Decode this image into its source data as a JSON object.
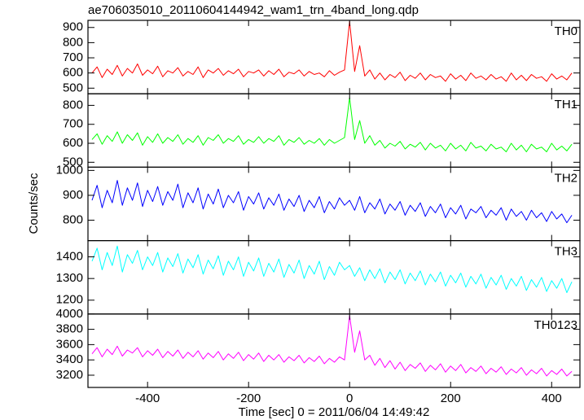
{
  "title": "ae706035010_20110604144942_wam1_trn_4band_long.qdp",
  "xlabel": "Time [sec] 0 = 2011/06/04 14:49:42",
  "ylabel": "Counts/sec",
  "chart_data": [
    {
      "type": "line",
      "label": "TH0",
      "color": "#ff0000",
      "x": [
        -510,
        -500,
        -490,
        -480,
        -470,
        -460,
        -450,
        -440,
        -430,
        -420,
        -410,
        -400,
        -390,
        -380,
        -370,
        -360,
        -350,
        -340,
        -330,
        -320,
        -310,
        -300,
        -290,
        -280,
        -270,
        -260,
        -250,
        -240,
        -230,
        -220,
        -210,
        -200,
        -190,
        -180,
        -170,
        -160,
        -150,
        -140,
        -130,
        -120,
        -110,
        -100,
        -90,
        -80,
        -70,
        -60,
        -50,
        -40,
        -30,
        -20,
        -10,
        0,
        10,
        20,
        30,
        40,
        50,
        60,
        70,
        80,
        90,
        100,
        110,
        120,
        130,
        140,
        150,
        160,
        170,
        180,
        190,
        200,
        210,
        220,
        230,
        240,
        250,
        260,
        270,
        280,
        290,
        300,
        310,
        320,
        330,
        340,
        350,
        360,
        370,
        380,
        390,
        400,
        410,
        420,
        430,
        440
      ],
      "values": [
        600,
        640,
        570,
        625,
        590,
        650,
        580,
        630,
        600,
        660,
        585,
        620,
        595,
        645,
        575,
        615,
        600,
        635,
        580,
        610,
        590,
        640,
        570,
        620,
        600,
        630,
        585,
        615,
        595,
        625,
        575,
        610,
        600,
        620,
        580,
        615,
        590,
        625,
        575,
        605,
        595,
        620,
        580,
        610,
        590,
        600,
        575,
        615,
        585,
        605,
        620,
        940,
        610,
        780,
        580,
        620,
        560,
        600,
        555,
        590,
        570,
        605,
        550,
        585,
        565,
        600,
        555,
        590,
        570,
        580,
        545,
        595,
        560,
        585,
        550,
        600,
        565,
        580,
        555,
        590,
        560,
        575,
        545,
        600,
        555,
        585,
        550,
        590,
        565,
        575,
        545,
        595,
        560,
        580,
        555,
        600
      ],
      "xlim": [
        -518,
        456
      ],
      "xticks": [
        -400,
        -200,
        0,
        200,
        400
      ],
      "ylim": [
        463,
        947
      ],
      "yticks": [
        500,
        600,
        700,
        800,
        900
      ]
    },
    {
      "type": "line",
      "label": "TH1",
      "color": "#00ff00",
      "x": [
        -510,
        -500,
        -490,
        -480,
        -470,
        -460,
        -450,
        -440,
        -430,
        -420,
        -410,
        -400,
        -390,
        -380,
        -370,
        -360,
        -350,
        -340,
        -330,
        -320,
        -310,
        -300,
        -290,
        -280,
        -270,
        -260,
        -250,
        -240,
        -230,
        -220,
        -210,
        -200,
        -190,
        -180,
        -170,
        -160,
        -150,
        -140,
        -130,
        -120,
        -110,
        -100,
        -90,
        -80,
        -70,
        -60,
        -50,
        -40,
        -30,
        -20,
        -10,
        0,
        10,
        20,
        30,
        40,
        50,
        60,
        70,
        80,
        90,
        100,
        110,
        120,
        130,
        140,
        150,
        160,
        170,
        180,
        190,
        200,
        210,
        220,
        230,
        240,
        250,
        260,
        270,
        280,
        290,
        300,
        310,
        320,
        330,
        340,
        350,
        360,
        370,
        380,
        390,
        400,
        410,
        420,
        430,
        440
      ],
      "values": [
        620,
        650,
        595,
        640,
        610,
        660,
        600,
        645,
        615,
        655,
        590,
        635,
        605,
        650,
        600,
        630,
        610,
        645,
        595,
        625,
        605,
        640,
        590,
        630,
        615,
        645,
        600,
        625,
        610,
        640,
        595,
        620,
        605,
        635,
        600,
        625,
        610,
        640,
        590,
        620,
        605,
        630,
        595,
        615,
        600,
        625,
        590,
        620,
        600,
        615,
        630,
        840,
        620,
        720,
        600,
        640,
        590,
        615,
        575,
        600,
        585,
        610,
        570,
        595,
        580,
        605,
        565,
        600,
        575,
        590,
        560,
        600,
        570,
        590,
        560,
        605,
        575,
        585,
        560,
        595,
        570,
        580,
        555,
        600,
        565,
        590,
        555,
        595,
        570,
        580,
        555,
        600,
        565,
        585,
        560,
        595
      ],
      "xlim": [
        -518,
        456
      ],
      "xticks": [
        -400,
        -200,
        0,
        200,
        400
      ],
      "ylim": [
        474,
        861
      ],
      "yticks": [
        500,
        600,
        700,
        800
      ]
    },
    {
      "type": "line",
      "label": "TH2",
      "color": "#0000ff",
      "x": [
        -510,
        -500,
        -490,
        -480,
        -470,
        -460,
        -450,
        -440,
        -430,
        -420,
        -410,
        -400,
        -390,
        -380,
        -370,
        -360,
        -350,
        -340,
        -330,
        -320,
        -310,
        -300,
        -290,
        -280,
        -270,
        -260,
        -250,
        -240,
        -230,
        -220,
        -210,
        -200,
        -190,
        -180,
        -170,
        -160,
        -150,
        -140,
        -130,
        -120,
        -110,
        -100,
        -90,
        -80,
        -70,
        -60,
        -50,
        -40,
        -30,
        -20,
        -10,
        0,
        10,
        20,
        30,
        40,
        50,
        60,
        70,
        80,
        90,
        100,
        110,
        120,
        130,
        140,
        150,
        160,
        170,
        180,
        190,
        200,
        210,
        220,
        230,
        240,
        250,
        260,
        270,
        280,
        290,
        300,
        310,
        320,
        330,
        340,
        350,
        360,
        370,
        380,
        390,
        400,
        410,
        420,
        430,
        440
      ],
      "values": [
        880,
        940,
        850,
        920,
        870,
        960,
        860,
        930,
        880,
        950,
        855,
        920,
        875,
        935,
        860,
        915,
        880,
        945,
        850,
        910,
        870,
        930,
        845,
        905,
        865,
        925,
        850,
        900,
        870,
        915,
        840,
        895,
        865,
        910,
        845,
        890,
        860,
        905,
        840,
        885,
        855,
        900,
        835,
        880,
        850,
        895,
        830,
        875,
        845,
        890,
        860,
        880,
        840,
        895,
        830,
        870,
        845,
        885,
        825,
        865,
        840,
        875,
        820,
        860,
        835,
        870,
        815,
        855,
        830,
        865,
        810,
        850,
        825,
        860,
        805,
        845,
        830,
        855,
        810,
        840,
        820,
        850,
        800,
        845,
        815,
        835,
        800,
        840,
        810,
        830,
        795,
        835,
        805,
        825,
        790,
        820
      ],
      "xlim": [
        -518,
        456
      ],
      "xticks": [
        -400,
        -200,
        0,
        200,
        400
      ],
      "ylim": [
        718,
        1013
      ],
      "yticks": [
        800,
        900,
        1000
      ]
    },
    {
      "type": "line",
      "label": "TH3",
      "color": "#00ffff",
      "x": [
        -510,
        -500,
        -490,
        -480,
        -470,
        -460,
        -450,
        -440,
        -430,
        -420,
        -410,
        -400,
        -390,
        -380,
        -370,
        -360,
        -350,
        -340,
        -330,
        -320,
        -310,
        -300,
        -290,
        -280,
        -270,
        -260,
        -250,
        -240,
        -230,
        -220,
        -210,
        -200,
        -190,
        -180,
        -170,
        -160,
        -150,
        -140,
        -130,
        -120,
        -110,
        -100,
        -90,
        -80,
        -70,
        -60,
        -50,
        -40,
        -30,
        -20,
        -10,
        0,
        10,
        20,
        30,
        40,
        50,
        60,
        70,
        80,
        90,
        100,
        110,
        120,
        130,
        140,
        150,
        160,
        170,
        180,
        190,
        200,
        210,
        220,
        230,
        240,
        250,
        260,
        270,
        280,
        290,
        300,
        310,
        320,
        330,
        340,
        350,
        360,
        370,
        380,
        390,
        400,
        410,
        420,
        430,
        440
      ],
      "values": [
        1380,
        1440,
        1340,
        1420,
        1360,
        1450,
        1330,
        1410,
        1370,
        1430,
        1340,
        1400,
        1360,
        1420,
        1330,
        1395,
        1355,
        1415,
        1325,
        1390,
        1350,
        1410,
        1320,
        1385,
        1345,
        1405,
        1315,
        1380,
        1340,
        1400,
        1310,
        1375,
        1335,
        1395,
        1310,
        1370,
        1330,
        1390,
        1305,
        1365,
        1325,
        1385,
        1300,
        1360,
        1320,
        1380,
        1295,
        1355,
        1315,
        1375,
        1340,
        1360,
        1310,
        1350,
        1290,
        1340,
        1300,
        1345,
        1280,
        1330,
        1295,
        1340,
        1275,
        1325,
        1290,
        1335,
        1270,
        1320,
        1285,
        1330,
        1265,
        1315,
        1280,
        1325,
        1260,
        1310,
        1275,
        1320,
        1255,
        1305,
        1270,
        1315,
        1250,
        1300,
        1265,
        1310,
        1245,
        1295,
        1260,
        1305,
        1240,
        1290,
        1255,
        1300,
        1235,
        1285
      ],
      "xlim": [
        -518,
        456
      ],
      "xticks": [
        -400,
        -200,
        0,
        200,
        400
      ],
      "ylim": [
        1136,
        1475
      ],
      "yticks": [
        1200,
        1300,
        1400
      ]
    },
    {
      "type": "line",
      "label": "TH0123",
      "color": "#ff00ff",
      "x": [
        -510,
        -500,
        -490,
        -480,
        -470,
        -460,
        -450,
        -440,
        -430,
        -420,
        -410,
        -400,
        -390,
        -380,
        -370,
        -360,
        -350,
        -340,
        -330,
        -320,
        -310,
        -300,
        -290,
        -280,
        -270,
        -260,
        -250,
        -240,
        -230,
        -220,
        -210,
        -200,
        -190,
        -180,
        -170,
        -160,
        -150,
        -140,
        -130,
        -120,
        -110,
        -100,
        -90,
        -80,
        -70,
        -60,
        -50,
        -40,
        -30,
        -20,
        -10,
        0,
        10,
        20,
        30,
        40,
        50,
        60,
        70,
        80,
        90,
        100,
        110,
        120,
        130,
        140,
        150,
        160,
        170,
        180,
        190,
        200,
        210,
        220,
        230,
        240,
        250,
        260,
        270,
        280,
        290,
        300,
        310,
        320,
        330,
        340,
        350,
        360,
        370,
        380,
        390,
        400,
        410,
        420,
        430,
        440
      ],
      "values": [
        3480,
        3560,
        3440,
        3540,
        3470,
        3580,
        3450,
        3530,
        3490,
        3560,
        3440,
        3520,
        3460,
        3540,
        3430,
        3510,
        3450,
        3530,
        3420,
        3500,
        3440,
        3520,
        3410,
        3490,
        3430,
        3510,
        3400,
        3480,
        3420,
        3500,
        3390,
        3470,
        3410,
        3490,
        3380,
        3460,
        3400,
        3470,
        3370,
        3440,
        3390,
        3460,
        3360,
        3430,
        3380,
        3450,
        3350,
        3420,
        3370,
        3440,
        3400,
        3980,
        3500,
        3780,
        3400,
        3460,
        3330,
        3420,
        3300,
        3390,
        3280,
        3370,
        3260,
        3340,
        3290,
        3360,
        3250,
        3330,
        3270,
        3350,
        3240,
        3320,
        3260,
        3340,
        3230,
        3300,
        3250,
        3320,
        3220,
        3290,
        3240,
        3310,
        3210,
        3280,
        3230,
        3300,
        3200,
        3270,
        3220,
        3290,
        3190,
        3260,
        3210,
        3280,
        3190,
        3250
      ],
      "xlim": [
        -518,
        456
      ],
      "xticks": [
        -400,
        -200,
        0,
        200,
        400
      ],
      "ylim": [
        3040,
        4000
      ],
      "yticks": [
        3200,
        3400,
        3600,
        3800,
        4000
      ]
    }
  ]
}
